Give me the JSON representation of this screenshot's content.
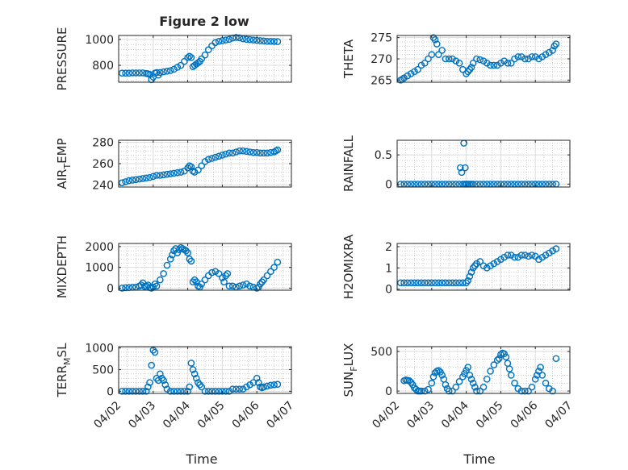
{
  "figure": {
    "title": "Figure 2 low",
    "xlabel": "Time"
  },
  "colors": {
    "marker": "#0072BD",
    "axis": "#262626",
    "grid": "#b0b0b0"
  },
  "chart_data": [
    {
      "id": "pressure",
      "type": "scatter",
      "ylabel": "PRESSURE",
      "xlim": [
        0,
        5
      ],
      "ylim": [
        670,
        1030
      ],
      "yticks": [
        800,
        1000
      ],
      "yticklabels": [
        "800",
        "1000"
      ],
      "xticks": [
        0,
        1,
        2,
        3,
        4,
        5
      ],
      "xticklabels": [],
      "grid": true,
      "x": [
        0.1,
        0.2,
        0.3,
        0.4,
        0.5,
        0.6,
        0.7,
        0.8,
        0.85,
        0.9,
        0.95,
        1.0,
        1.05,
        1.1,
        1.15,
        1.2,
        1.3,
        1.4,
        1.5,
        1.6,
        1.7,
        1.8,
        1.9,
        2.0,
        2.05,
        2.1,
        2.15,
        2.2,
        2.25,
        2.3,
        2.35,
        2.4,
        2.5,
        2.6,
        2.7,
        2.8,
        2.9,
        3.0,
        3.1,
        3.2,
        3.3,
        3.4,
        3.5,
        3.6,
        3.7,
        3.8,
        3.9,
        4.0,
        4.1,
        4.2,
        4.3,
        4.4,
        4.5,
        4.6
      ],
      "y": [
        740,
        740,
        740,
        742,
        742,
        742,
        742,
        738,
        735,
        730,
        690,
        710,
        740,
        745,
        725,
        745,
        750,
        755,
        760,
        770,
        785,
        800,
        830,
        860,
        870,
        860,
        790,
        800,
        810,
        820,
        830,
        850,
        880,
        920,
        950,
        975,
        985,
        990,
        995,
        1000,
        1010,
        1015,
        1012,
        1005,
        1000,
        998,
        995,
        992,
        990,
        988,
        985,
        985,
        984,
        983
      ]
    },
    {
      "id": "theta",
      "type": "scatter",
      "ylabel": "THETA",
      "xlim": [
        0,
        5
      ],
      "ylim": [
        264.5,
        275.5
      ],
      "yticks": [
        265,
        270,
        275
      ],
      "yticklabels": [
        "265",
        "270",
        "275"
      ],
      "xticks": [
        0,
        1,
        2,
        3,
        4,
        5
      ],
      "xticklabels": [],
      "grid": true,
      "x": [
        0.1,
        0.15,
        0.2,
        0.3,
        0.4,
        0.5,
        0.6,
        0.7,
        0.8,
        0.9,
        1.0,
        1.05,
        1.1,
        1.15,
        1.2,
        1.3,
        1.4,
        1.5,
        1.6,
        1.7,
        1.8,
        1.9,
        2.0,
        2.05,
        2.1,
        2.15,
        2.2,
        2.3,
        2.4,
        2.5,
        2.6,
        2.7,
        2.8,
        2.9,
        3.0,
        3.1,
        3.2,
        3.3,
        3.4,
        3.5,
        3.6,
        3.7,
        3.8,
        3.9,
        4.0,
        4.1,
        4.2,
        4.3,
        4.4,
        4.5,
        4.55,
        4.6
      ],
      "y": [
        265,
        265.2,
        265.5,
        266,
        266.5,
        267,
        267.5,
        268.5,
        269,
        270,
        271,
        275,
        274.5,
        273.5,
        271,
        272,
        270,
        270,
        270,
        269.5,
        269,
        267.5,
        266.5,
        267,
        267.5,
        268,
        269,
        270,
        269.8,
        269.5,
        269,
        268.5,
        268.5,
        268.5,
        269,
        269.5,
        269,
        269,
        270,
        270.5,
        270.5,
        270,
        270,
        270.5,
        270.5,
        270,
        270.5,
        271,
        271.5,
        272,
        273,
        273.5
      ]
    },
    {
      "id": "air_temp",
      "type": "scatter",
      "ylabel": "AIR_TEMP",
      "ylabel_parts": [
        "AIR",
        "T",
        "EMP"
      ],
      "xlim": [
        0,
        5
      ],
      "ylim": [
        238,
        282
      ],
      "yticks": [
        240,
        260,
        280
      ],
      "yticklabels": [
        "240",
        "260",
        "280"
      ],
      "xticks": [
        0,
        1,
        2,
        3,
        4,
        5
      ],
      "xticklabels": [],
      "grid": true,
      "x": [
        0.1,
        0.2,
        0.3,
        0.4,
        0.5,
        0.6,
        0.7,
        0.8,
        0.9,
        1.0,
        1.1,
        1.2,
        1.3,
        1.4,
        1.5,
        1.6,
        1.7,
        1.8,
        1.9,
        2.0,
        2.05,
        2.1,
        2.15,
        2.2,
        2.3,
        2.4,
        2.5,
        2.6,
        2.7,
        2.8,
        2.9,
        3.0,
        3.1,
        3.2,
        3.3,
        3.4,
        3.5,
        3.6,
        3.7,
        3.8,
        3.9,
        4.0,
        4.1,
        4.2,
        4.3,
        4.4,
        4.5,
        4.55,
        4.6
      ],
      "y": [
        242,
        243,
        244,
        244.5,
        245,
        245.5,
        246,
        246.5,
        247,
        248,
        249,
        249,
        249.5,
        250,
        250.5,
        251,
        251.5,
        252,
        253,
        256,
        258,
        257,
        253,
        252,
        254,
        258,
        262,
        264,
        265,
        266,
        267,
        268,
        269,
        270,
        270,
        271,
        272,
        272,
        271.5,
        271,
        270.5,
        270.5,
        270,
        270,
        270,
        270.5,
        271,
        272,
        273
      ]
    },
    {
      "id": "rainfall",
      "type": "scatter",
      "ylabel": "RAINFALL",
      "xlim": [
        0,
        5
      ],
      "ylim": [
        -0.05,
        0.75
      ],
      "yticks": [
        0,
        0.5
      ],
      "yticklabels": [
        "0",
        "0.5"
      ],
      "xticks": [
        0,
        1,
        2,
        3,
        4,
        5
      ],
      "xticklabels": [],
      "grid": true,
      "x": [
        0.1,
        0.2,
        0.3,
        0.4,
        0.5,
        0.6,
        0.7,
        0.8,
        0.9,
        1.0,
        1.1,
        1.2,
        1.3,
        1.4,
        1.5,
        1.6,
        1.7,
        1.8,
        1.9,
        1.95,
        2.0,
        2.05,
        2.1,
        2.15,
        2.2,
        2.3,
        2.4,
        2.5,
        2.6,
        2.7,
        2.8,
        2.9,
        3.0,
        3.1,
        3.2,
        3.3,
        3.4,
        3.5,
        3.6,
        3.7,
        3.8,
        3.9,
        4.0,
        4.1,
        4.2,
        4.3,
        4.4,
        4.5,
        4.6,
        1.83,
        1.87,
        1.93,
        1.97,
        2.0
      ],
      "y": [
        0,
        0,
        0,
        0,
        0,
        0,
        0,
        0,
        0,
        0,
        0,
        0,
        0,
        0,
        0,
        0,
        0,
        0,
        0,
        0,
        0,
        0,
        0,
        0,
        0,
        0,
        0,
        0,
        0,
        0,
        0,
        0,
        0,
        0,
        0,
        0,
        0,
        0,
        0,
        0,
        0,
        0,
        0,
        0,
        0,
        0,
        0,
        0,
        0,
        0.28,
        0.2,
        0.7,
        0.28,
        0
      ]
    },
    {
      "id": "mixdepth",
      "type": "scatter",
      "ylabel": "MIXDEPTH",
      "xlim": [
        0,
        5
      ],
      "ylim": [
        -100,
        2150
      ],
      "yticks": [
        0,
        1000,
        2000
      ],
      "yticklabels": [
        "0",
        "1000",
        "2000"
      ],
      "xticks": [
        0,
        1,
        2,
        3,
        4,
        5
      ],
      "xticklabels": [],
      "grid": true,
      "x": [
        0.1,
        0.2,
        0.3,
        0.4,
        0.5,
        0.6,
        0.65,
        0.7,
        0.75,
        0.8,
        0.85,
        0.9,
        0.95,
        1.0,
        1.05,
        1.1,
        1.2,
        1.3,
        1.4,
        1.5,
        1.55,
        1.6,
        1.65,
        1.7,
        1.75,
        1.8,
        1.85,
        1.9,
        1.95,
        2.0,
        2.05,
        2.1,
        2.15,
        2.2,
        2.25,
        2.3,
        2.35,
        2.4,
        2.5,
        2.6,
        2.7,
        2.8,
        2.9,
        3.0,
        3.05,
        3.1,
        3.15,
        3.2,
        3.3,
        3.4,
        3.5,
        3.6,
        3.7,
        3.8,
        3.9,
        4.0,
        4.05,
        4.1,
        4.15,
        4.2,
        4.3,
        4.4,
        4.5,
        4.6
      ],
      "y": [
        0,
        20,
        30,
        40,
        50,
        100,
        150,
        250,
        80,
        100,
        150,
        30,
        0,
        50,
        200,
        100,
        400,
        700,
        1100,
        1400,
        1600,
        1800,
        1900,
        1700,
        1850,
        1950,
        1900,
        1850,
        1800,
        1700,
        1400,
        1300,
        300,
        400,
        300,
        100,
        50,
        200,
        400,
        600,
        750,
        800,
        700,
        500,
        300,
        600,
        700,
        100,
        100,
        50,
        100,
        150,
        200,
        100,
        50,
        0,
        50,
        200,
        300,
        400,
        600,
        800,
        1000,
        1250
      ]
    },
    {
      "id": "h2omixra",
      "type": "scatter",
      "ylabel": "H2OMIXRA",
      "xlim": [
        0,
        5
      ],
      "ylim": [
        -0.05,
        2.15
      ],
      "yticks": [
        0,
        1,
        2
      ],
      "yticklabels": [
        "0",
        "1",
        "2"
      ],
      "xticks": [
        0,
        1,
        2,
        3,
        4,
        5
      ],
      "xticklabels": [],
      "grid": true,
      "x": [
        0.1,
        0.2,
        0.3,
        0.4,
        0.5,
        0.6,
        0.7,
        0.8,
        0.9,
        1.0,
        1.1,
        1.2,
        1.3,
        1.4,
        1.5,
        1.6,
        1.7,
        1.8,
        1.9,
        2.0,
        2.05,
        2.1,
        2.15,
        2.2,
        2.25,
        2.3,
        2.4,
        2.5,
        2.6,
        2.7,
        2.8,
        2.9,
        3.0,
        3.1,
        3.2,
        3.3,
        3.4,
        3.5,
        3.6,
        3.7,
        3.8,
        3.9,
        4.0,
        4.1,
        4.2,
        4.3,
        4.4,
        4.5,
        4.6
      ],
      "y": [
        0.3,
        0.3,
        0.3,
        0.3,
        0.3,
        0.3,
        0.3,
        0.3,
        0.3,
        0.3,
        0.3,
        0.3,
        0.3,
        0.3,
        0.3,
        0.3,
        0.3,
        0.3,
        0.3,
        0.3,
        0.4,
        0.6,
        0.8,
        1.0,
        1.1,
        1.2,
        1.3,
        1.1,
        1.0,
        1.1,
        1.2,
        1.3,
        1.4,
        1.5,
        1.6,
        1.6,
        1.5,
        1.5,
        1.6,
        1.6,
        1.55,
        1.6,
        1.55,
        1.4,
        1.5,
        1.6,
        1.7,
        1.8,
        1.9
      ]
    },
    {
      "id": "terr_msl",
      "type": "scatter",
      "ylabel": "TERR_MSL",
      "ylabel_parts": [
        "TERR",
        "M",
        "SL"
      ],
      "xlim": [
        0,
        5
      ],
      "ylim": [
        -50,
        1030
      ],
      "yticks": [
        0,
        500,
        1000
      ],
      "yticklabels": [
        "0",
        "500",
        "1000"
      ],
      "xticks": [
        0,
        1,
        2,
        3,
        4,
        5
      ],
      "xticklabels": [
        "04/02",
        "04/03",
        "04/04",
        "04/05",
        "04/06",
        "04/07"
      ],
      "grid": true,
      "x": [
        0.1,
        0.2,
        0.3,
        0.4,
        0.5,
        0.6,
        0.7,
        0.8,
        0.85,
        0.9,
        0.95,
        1.0,
        1.05,
        1.1,
        1.15,
        1.2,
        1.25,
        1.3,
        1.35,
        1.4,
        1.5,
        1.6,
        1.7,
        1.8,
        1.9,
        2.0,
        2.05,
        2.1,
        2.15,
        2.2,
        2.25,
        2.3,
        2.35,
        2.4,
        2.5,
        2.6,
        2.7,
        2.8,
        2.9,
        3.0,
        3.1,
        3.2,
        3.3,
        3.4,
        3.5,
        3.6,
        3.7,
        3.8,
        3.9,
        4.0,
        4.05,
        4.1,
        4.15,
        4.2,
        4.3,
        4.4,
        4.5,
        4.6
      ],
      "y": [
        0,
        0,
        0,
        0,
        0,
        0,
        0,
        0,
        100,
        200,
        600,
        950,
        900,
        300,
        250,
        400,
        300,
        250,
        150,
        50,
        0,
        0,
        0,
        0,
        0,
        0,
        100,
        650,
        500,
        400,
        300,
        200,
        150,
        100,
        0,
        0,
        0,
        0,
        0,
        0,
        0,
        0,
        50,
        50,
        50,
        50,
        100,
        150,
        200,
        300,
        200,
        100,
        80,
        100,
        120,
        140,
        150,
        160
      ]
    },
    {
      "id": "sun_flux",
      "type": "scatter",
      "ylabel": "SUN_FLUX",
      "ylabel_parts": [
        "SUN",
        "F",
        "LUX"
      ],
      "xlim": [
        0,
        5
      ],
      "ylim": [
        -30,
        560
      ],
      "yticks": [
        0,
        500
      ],
      "yticklabels": [
        "0",
        "500"
      ],
      "xticks": [
        0,
        1,
        2,
        3,
        4,
        5
      ],
      "xticklabels": [
        "04/02",
        "04/03",
        "04/04",
        "04/05",
        "04/06",
        "04/07"
      ],
      "grid": true,
      "x": [
        0.2,
        0.25,
        0.3,
        0.35,
        0.4,
        0.45,
        0.5,
        0.55,
        0.6,
        0.65,
        0.7,
        0.8,
        0.9,
        1.0,
        1.05,
        1.1,
        1.15,
        1.2,
        1.25,
        1.3,
        1.35,
        1.4,
        1.45,
        1.5,
        1.6,
        1.7,
        1.8,
        1.9,
        1.95,
        2.0,
        2.05,
        2.1,
        2.15,
        2.2,
        2.25,
        2.3,
        2.4,
        2.5,
        2.6,
        2.7,
        2.8,
        2.9,
        2.95,
        3.0,
        3.05,
        3.1,
        3.15,
        3.2,
        3.25,
        3.3,
        3.4,
        3.5,
        3.6,
        3.7,
        3.8,
        3.9,
        4.0,
        4.05,
        4.1,
        4.15,
        4.2,
        4.3,
        4.4,
        4.5,
        4.6
      ],
      "y": [
        130,
        140,
        135,
        130,
        110,
        80,
        40,
        20,
        0,
        0,
        0,
        0,
        20,
        100,
        180,
        230,
        250,
        260,
        240,
        200,
        150,
        80,
        30,
        0,
        0,
        50,
        120,
        180,
        220,
        260,
        300,
        200,
        150,
        100,
        50,
        0,
        0,
        50,
        150,
        250,
        330,
        390,
        410,
        460,
        480,
        470,
        430,
        350,
        280,
        200,
        100,
        30,
        0,
        0,
        0,
        50,
        150,
        200,
        250,
        300,
        200,
        100,
        30,
        0,
        410
      ]
    }
  ]
}
